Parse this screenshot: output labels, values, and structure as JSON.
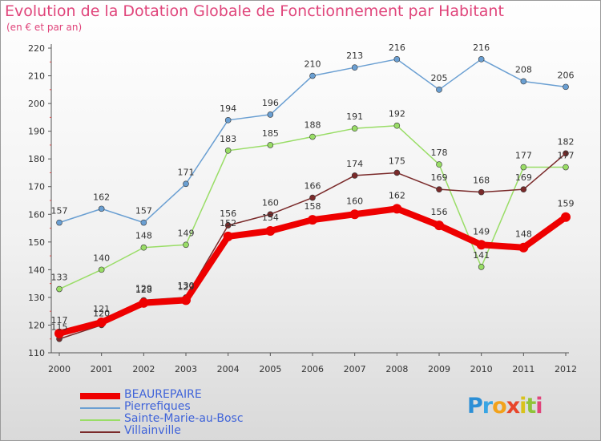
{
  "chart_data": {
    "type": "line",
    "title": "Evolution de la Dotation Globale de Fonctionnement par Habitant",
    "subtitle": "(en € et par an)",
    "xlabel": "",
    "ylabel": "",
    "ylim": [
      110,
      220
    ],
    "yticks": [
      110,
      120,
      130,
      140,
      150,
      160,
      170,
      180,
      190,
      200,
      210,
      220
    ],
    "categories": [
      "2000",
      "2001",
      "2002",
      "2003",
      "2004",
      "2005",
      "2006",
      "2007",
      "2008",
      "2009",
      "2010",
      "2011",
      "2012"
    ],
    "series": [
      {
        "name": "BEAUREPAIRE",
        "color": "#ee0000",
        "values": [
          117,
          121,
          128,
          129,
          152,
          154,
          158,
          160,
          162,
          156,
          149,
          148,
          159
        ]
      },
      {
        "name": "Pierrefiques",
        "color": "#6a9fd2",
        "values": [
          157,
          162,
          157,
          171,
          194,
          196,
          210,
          213,
          216,
          205,
          216,
          208,
          206
        ]
      },
      {
        "name": "Sainte-Marie-au-Bosc",
        "color": "#99dd66",
        "values": [
          133,
          140,
          148,
          149,
          183,
          185,
          188,
          191,
          192,
          178,
          141,
          177,
          177
        ]
      },
      {
        "name": "Villainville",
        "color": "#7a2a2a",
        "values": [
          115,
          120,
          129,
          130,
          156,
          160,
          166,
          174,
          175,
          169,
          168,
          169,
          182
        ]
      }
    ]
  },
  "legend": {
    "items": [
      "BEAUREPAIRE",
      "Pierrefiques",
      "Sainte-Marie-au-Bosc",
      "Villainville"
    ]
  },
  "logo": {
    "letters": [
      "P",
      "r",
      "o",
      "x",
      "i",
      "t",
      "i"
    ]
  }
}
